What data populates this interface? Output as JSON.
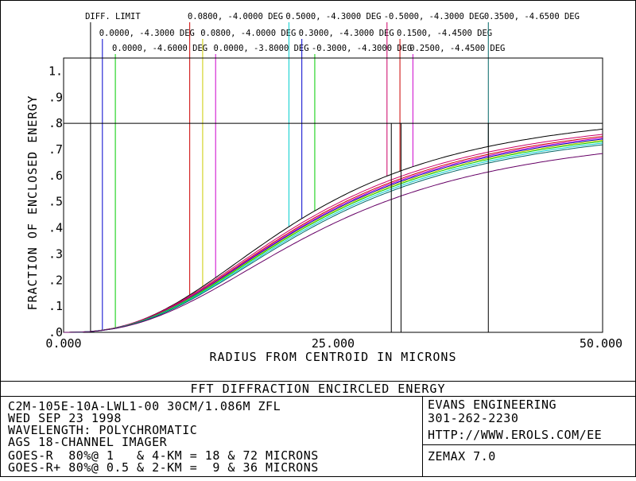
{
  "window": {
    "title": "FFT DIFFRACTION ENCIRCLED ENERGY"
  },
  "footer": {
    "left_lines": [
      "C2M-105E-10A-LWL1-00 30CM/1.086M ZFL",
      "WED SEP 23 1998",
      "WAVELENGTH: POLYCHROMATIC",
      "AGS 18-CHANNEL IMAGER",
      "GOES-R  80%@ 1   & 4-KM = 18 & 72 MICRONS",
      "GOES-R+ 80%@ 0.5 & 2-KM =  9 & 36 MICRONS"
    ],
    "right_lines": [
      "EVANS ENGINEERING",
      "301-262-2230",
      "HTTP://WWW.EROLS.COM/EE"
    ],
    "program": "ZEMAX 7.0"
  },
  "chart_data": {
    "type": "line",
    "title": "FFT DIFFRACTION ENCIRCLED ENERGY",
    "xlabel": "RADIUS FROM CENTROID IN MICRONS",
    "ylabel": "FRACTION OF ENCLOSED ENERGY",
    "xlim": [
      0,
      50
    ],
    "ylim": [
      0,
      1.05
    ],
    "x_tick_labels": [
      "0.000",
      "25.000",
      "50.000"
    ],
    "y_tick_labels": [
      ".0",
      ".1",
      ".2",
      ".3",
      ".4",
      ".5",
      ".6",
      ".7",
      ".8",
      ".9",
      "1."
    ],
    "reference_level": 0.8,
    "grid": false,
    "legend": "field labels along top, connected by vertical leader lines",
    "field_labels": [
      {
        "name": "DIFF. LIMIT",
        "color": "#000000",
        "row": 0,
        "label_x": 2.0,
        "leader_x": 2.5
      },
      {
        "name": "0.0000, -4.3000 DEG",
        "color": "#0000cc",
        "row": 1,
        "label_x": 3.3,
        "leader_x": 3.6
      },
      {
        "name": "0.0000, -4.6000 DEG",
        "color": "#00cc00",
        "row": 2,
        "label_x": 4.5,
        "leader_x": 4.8
      },
      {
        "name": "0.0800, -4.0000 DEG",
        "color": "#cc0000",
        "row": 0,
        "label_x": 11.5,
        "leader_x": 11.7
      },
      {
        "name": "0.0800, -4.0000 DEG",
        "color": "#cccc00",
        "row": 1,
        "label_x": 12.7,
        "leader_x": 12.9
      },
      {
        "name": "0.0000, -3.8000 DEG",
        "color": "#cc00cc",
        "row": 2,
        "label_x": 13.9,
        "leader_x": 14.1
      },
      {
        "name": "0.5000, -4.3000 DEG",
        "color": "#00cccc",
        "row": 0,
        "label_x": 20.6,
        "leader_x": 20.9
      },
      {
        "name": "0.3000, -4.3000 DEG",
        "color": "#0000cc",
        "row": 1,
        "label_x": 21.8,
        "leader_x": 22.1
      },
      {
        "name": "-0.3000, -4.3000 DEG",
        "color": "#00cc00",
        "row": 2,
        "label_x": 23.0,
        "leader_x": 23.3
      },
      {
        "name": "-0.5000, -4.3000 DEG",
        "color": "#cc0066",
        "row": 0,
        "label_x": 29.7,
        "leader_x": 30.0
      },
      {
        "name": "0.1500, -4.4500 DEG",
        "color": "#cc0000",
        "row": 1,
        "label_x": 30.9,
        "leader_x": 31.2
      },
      {
        "name": "0.2500, -4.4500 DEG",
        "color": "#cc00cc",
        "row": 2,
        "label_x": 32.1,
        "leader_x": 32.4
      },
      {
        "name": "0.3500, -4.6500 DEG",
        "color": "#006666",
        "row": 0,
        "label_x": 39.0,
        "leader_x": 39.4
      }
    ],
    "series": [
      {
        "color": "#000000",
        "plateau": 0.876,
        "half_radius": 22.2,
        "steepness": 2.55
      },
      {
        "color": "#cc0066",
        "plateau": 0.862,
        "half_radius": 22.6,
        "steepness": 2.5
      },
      {
        "color": "#cc0000",
        "plateau": 0.855,
        "half_radius": 22.8,
        "steepness": 2.5
      },
      {
        "color": "#cc00cc",
        "plateau": 0.85,
        "half_radius": 22.9,
        "steepness": 2.5
      },
      {
        "color": "#0000cc",
        "plateau": 0.846,
        "half_radius": 23.0,
        "steepness": 2.5
      },
      {
        "color": "#cccc00",
        "plateau": 0.842,
        "half_radius": 23.1,
        "steepness": 2.5
      },
      {
        "color": "#00cc00",
        "plateau": 0.838,
        "half_radius": 23.2,
        "steepness": 2.5
      },
      {
        "color": "#00cccc",
        "plateau": 0.833,
        "half_radius": 23.4,
        "steepness": 2.5
      },
      {
        "color": "#006666",
        "plateau": 0.828,
        "half_radius": 23.6,
        "steepness": 2.5
      },
      {
        "color": "#660066",
        "plateau": 0.8,
        "half_radius": 24.2,
        "steepness": 2.45
      }
    ],
    "ee80_markers": [
      {
        "color": "#000000",
        "x": 30.4
      },
      {
        "color": "#000000",
        "x": 31.3
      },
      {
        "color": "#000000",
        "x": 39.4
      }
    ]
  }
}
